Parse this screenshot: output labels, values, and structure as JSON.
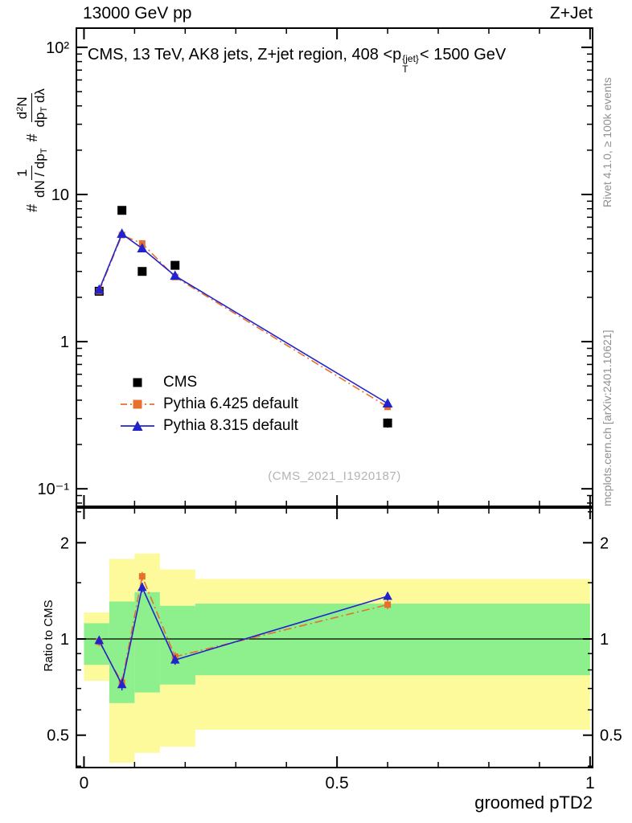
{
  "header": {
    "left": "13000 GeV pp",
    "right": "Z+Jet"
  },
  "main": {
    "title": {
      "pre": "CMS, 13 TeV, AK8 jets, Z+jet region, 408 <p",
      "sup": "{jet}",
      "sub": "T",
      "post": "< 1500 GeV"
    },
    "watermark": "(CMS_2021_I1920187)",
    "ylabel": {
      "h1": "#",
      "f1num": "1",
      "f1den": "dN / dp",
      "f1den_sub": "T",
      "h2": "#",
      "f2num": "d",
      "f2num_sup": "2",
      "f2num_post": "N",
      "f2den": "dp",
      "f2den_sub": "T",
      "f2den_post": " dλ"
    }
  },
  "side_notes": {
    "top_right": "Rivet 4.1.0, ≥ 100k events",
    "bottom_right": "mcplots.cern.ch [arXiv:2401.10621]"
  },
  "ratio_panel": {
    "ylabel": "Ratio to CMS"
  },
  "xaxis": {
    "label": "groomed pTD2"
  },
  "legend": [
    {
      "label": "CMS",
      "marker": "square",
      "color": "#000000",
      "line": "none"
    },
    {
      "label": "Pythia 6.425 default",
      "marker": "square",
      "color": "#e8702d",
      "line": "dashdot"
    },
    {
      "label": "Pythia 8.315 default",
      "marker": "triangle",
      "color": "#2323cc",
      "line": "solid"
    }
  ],
  "chart_data": {
    "type": "line",
    "title": "CMS, 13 TeV, AK8 jets, Z+jet region, 408 <pT{jet}< 1500 GeV",
    "xlabel": "groomed pTD2",
    "ylabel": "# 1/(dN/dpT) # d2N/(dpT dλ)",
    "ratio_ylabel": "Ratio to CMS",
    "xlim": [
      -0.015,
      1.005
    ],
    "main_ylim_log": [
      0.076,
      135
    ],
    "ratio_ylim_log": [
      0.396,
      2.57
    ],
    "x_major_ticks": [
      {
        "v": 0,
        "label": "0"
      },
      {
        "v": 0.5,
        "label": "0.5"
      },
      {
        "v": 1,
        "label": "1"
      }
    ],
    "x_minor_step": 0.1,
    "main_y_ticks": [
      {
        "v": 0.1,
        "label": "10⁻¹"
      },
      {
        "v": 1,
        "label": "1"
      },
      {
        "v": 10,
        "label": "10"
      },
      {
        "v": 100,
        "label": "10²"
      }
    ],
    "ratio_y_ticks": [
      {
        "v": 0.5,
        "label": "0.5"
      },
      {
        "v": 1,
        "label": "1"
      },
      {
        "v": 2,
        "label": "2"
      }
    ],
    "ratio_y_minor": [
      0.4,
      0.6,
      0.7,
      0.8,
      0.9,
      1.5,
      2.5
    ],
    "series": [
      {
        "name": "CMS",
        "color": "#000000",
        "marker": "square",
        "line": "none",
        "msize": 11,
        "x": [
          0.03,
          0.075,
          0.115,
          0.18,
          0.6
        ],
        "y": [
          2.2,
          7.8,
          3.0,
          3.3,
          0.28
        ],
        "yerr": [
          0.12,
          0.35,
          0.18,
          0.18,
          0.02
        ]
      },
      {
        "name": "Pythia 6.425 default",
        "color": "#e8702d",
        "marker": "square",
        "line": "dashdot",
        "msize": 8,
        "x": [
          0.03,
          0.075,
          0.115,
          0.18,
          0.6
        ],
        "y": [
          2.2,
          5.3,
          4.65,
          2.75,
          0.36
        ],
        "yerr": [
          0.06,
          0.12,
          0.1,
          0.07,
          0.012
        ]
      },
      {
        "name": "Pythia 8.315 default",
        "color": "#2323cc",
        "marker": "triangle",
        "line": "solid",
        "msize": 11,
        "x": [
          0.03,
          0.075,
          0.115,
          0.18,
          0.6
        ],
        "y": [
          2.25,
          5.4,
          4.3,
          2.8,
          0.38
        ],
        "yerr": [
          0.06,
          0.12,
          0.1,
          0.07,
          0.012
        ]
      }
    ],
    "ratio_series": [
      {
        "name": "Pythia 6.425 default",
        "color": "#e8702d",
        "marker": "square",
        "line": "dashdot",
        "msize": 8,
        "x": [
          0.03,
          0.075,
          0.115,
          0.18,
          0.6
        ],
        "y": [
          0.98,
          0.73,
          1.57,
          0.88,
          1.28
        ],
        "yerr": [
          0.03,
          0.03,
          0.05,
          0.03,
          0.04
        ]
      },
      {
        "name": "Pythia 8.315 default",
        "color": "#2323cc",
        "marker": "triangle",
        "line": "solid",
        "msize": 10,
        "x": [
          0.03,
          0.075,
          0.115,
          0.18,
          0.6
        ],
        "y": [
          0.99,
          0.72,
          1.45,
          0.86,
          1.36
        ],
        "yerr": [
          0.03,
          0.03,
          0.05,
          0.03,
          0.04
        ]
      }
    ],
    "ratio_bands": [
      {
        "x0": 0.0,
        "x1": 0.05,
        "yellow": [
          0.74,
          1.21
        ],
        "green": [
          0.83,
          1.12
        ]
      },
      {
        "x0": 0.05,
        "x1": 0.1,
        "yellow": [
          0.41,
          1.78
        ],
        "green": [
          0.63,
          1.31
        ]
      },
      {
        "x0": 0.1,
        "x1": 0.15,
        "yellow": [
          0.44,
          1.85
        ],
        "green": [
          0.68,
          1.4
        ]
      },
      {
        "x0": 0.15,
        "x1": 0.22,
        "yellow": [
          0.46,
          1.65
        ],
        "green": [
          0.72,
          1.27
        ]
      },
      {
        "x0": 0.22,
        "x1": 1.0,
        "yellow": [
          0.52,
          1.54
        ],
        "green": [
          0.77,
          1.29
        ]
      }
    ],
    "band_colors": {
      "yellow": "#fdfa9b",
      "green": "#8df08d"
    },
    "legend_position": "center-left",
    "grid": false
  }
}
